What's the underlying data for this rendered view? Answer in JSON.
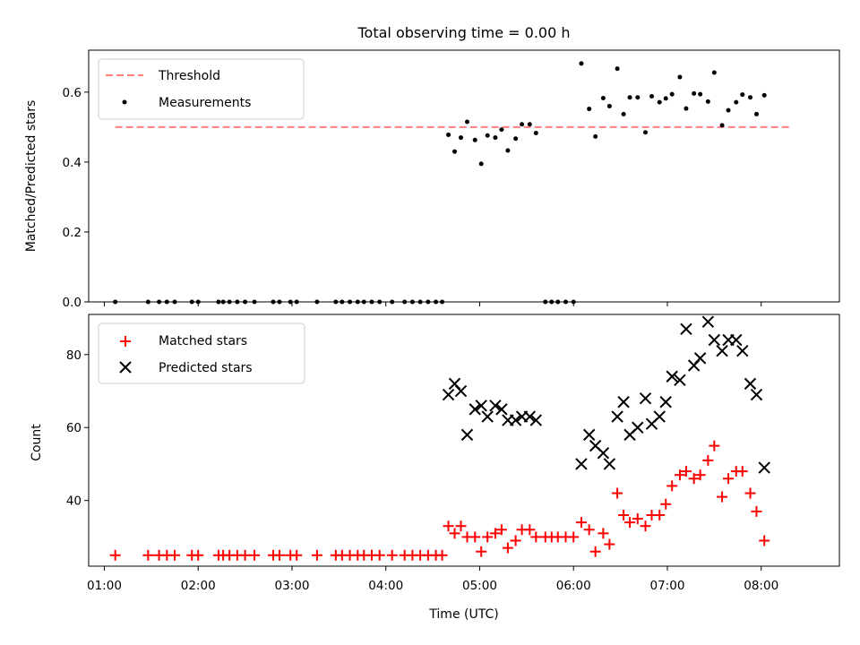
{
  "chart_data": [
    {
      "type": "scatter",
      "title": "Total observing time = 0.00 h",
      "xlabel": "",
      "ylabel": "Matched/Predicted stars",
      "ylim": [
        0,
        0.72
      ],
      "yticks": [
        0.0,
        0.2,
        0.4,
        0.6
      ],
      "ytick_labels": [
        "0.0",
        "0.2",
        "0.4",
        "0.6"
      ],
      "xlim": [
        "00:50",
        "08:50"
      ],
      "legend_position": "upper-left",
      "threshold": {
        "name": "Threshold",
        "value": 0.5,
        "x_start": "01:07",
        "x_end": "08:20",
        "color": "#ff7f7f",
        "style": "dashed"
      },
      "series": [
        {
          "name": "Measurements",
          "color": "#000000",
          "marker": "dot",
          "points": [
            [
              "01:07",
              0
            ],
            [
              "01:28",
              0
            ],
            [
              "01:35",
              0
            ],
            [
              "01:40",
              0
            ],
            [
              "01:45",
              0
            ],
            [
              "01:56",
              0
            ],
            [
              "02:00",
              0
            ],
            [
              "02:13",
              0
            ],
            [
              "02:16",
              0
            ],
            [
              "02:20",
              0
            ],
            [
              "02:25",
              0
            ],
            [
              "02:30",
              0
            ],
            [
              "02:36",
              0
            ],
            [
              "02:48",
              0
            ],
            [
              "02:52",
              0
            ],
            [
              "02:59",
              0
            ],
            [
              "03:03",
              0
            ],
            [
              "03:16",
              0
            ],
            [
              "03:28",
              0
            ],
            [
              "03:32",
              0
            ],
            [
              "03:37",
              0
            ],
            [
              "03:42",
              0
            ],
            [
              "03:46",
              0
            ],
            [
              "03:51",
              0
            ],
            [
              "03:56",
              0
            ],
            [
              "04:04",
              0
            ],
            [
              "04:12",
              0
            ],
            [
              "04:17",
              0
            ],
            [
              "04:22",
              0
            ],
            [
              "04:27",
              0
            ],
            [
              "04:32",
              0
            ],
            [
              "04:36",
              0
            ],
            [
              "04:40",
              0.478
            ],
            [
              "04:44",
              0.43
            ],
            [
              "04:48",
              0.47
            ],
            [
              "04:52",
              0.515
            ],
            [
              "04:57",
              0.463
            ],
            [
              "05:01",
              0.395
            ],
            [
              "05:05",
              0.476
            ],
            [
              "05:10",
              0.47
            ],
            [
              "05:14",
              0.493
            ],
            [
              "05:18",
              0.433
            ],
            [
              "05:23",
              0.467
            ],
            [
              "05:27",
              0.508
            ],
            [
              "05:32",
              0.508
            ],
            [
              "05:36",
              0.483
            ],
            [
              "05:42",
              0
            ],
            [
              "05:46",
              0
            ],
            [
              "05:50",
              0
            ],
            [
              "05:55",
              0
            ],
            [
              "06:00",
              0
            ],
            [
              "06:05",
              0.682
            ],
            [
              "06:10",
              0.552
            ],
            [
              "06:14",
              0.473
            ],
            [
              "06:19",
              0.583
            ],
            [
              "06:23",
              0.56
            ],
            [
              "06:28",
              0.667
            ],
            [
              "06:32",
              0.537
            ],
            [
              "06:36",
              0.585
            ],
            [
              "06:41",
              0.585
            ],
            [
              "06:46",
              0.485
            ],
            [
              "06:50",
              0.588
            ],
            [
              "06:55",
              0.571
            ],
            [
              "06:59",
              0.582
            ],
            [
              "07:03",
              0.594
            ],
            [
              "07:08",
              0.643
            ],
            [
              "07:12",
              0.553
            ],
            [
              "07:17",
              0.596
            ],
            [
              "07:21",
              0.594
            ],
            [
              "07:26",
              0.573
            ],
            [
              "07:30",
              0.656
            ],
            [
              "07:35",
              0.505
            ],
            [
              "07:39",
              0.548
            ],
            [
              "07:44",
              0.571
            ],
            [
              "07:48",
              0.593
            ],
            [
              "07:53",
              0.585
            ],
            [
              "07:57",
              0.537
            ],
            [
              "08:02",
              0.591
            ]
          ]
        }
      ]
    },
    {
      "type": "scatter",
      "title": "",
      "xlabel": "Time (UTC)",
      "ylabel": "Count",
      "ylim": [
        22,
        91
      ],
      "yticks": [
        40,
        60,
        80
      ],
      "ytick_labels": [
        "40",
        "60",
        "80"
      ],
      "xlim": [
        "00:50",
        "08:50"
      ],
      "xticks": [
        "01:00",
        "02:00",
        "03:00",
        "04:00",
        "05:00",
        "06:00",
        "07:00",
        "08:00"
      ],
      "xtick_labels": [
        "01:00",
        "02:00",
        "03:00",
        "04:00",
        "05:00",
        "06:00",
        "07:00",
        "08:00"
      ],
      "legend_position": "upper-left",
      "series": [
        {
          "name": "Matched stars",
          "color": "#ff0000",
          "marker": "plus",
          "points": [
            [
              "01:07",
              25
            ],
            [
              "01:28",
              25
            ],
            [
              "01:35",
              25
            ],
            [
              "01:40",
              25
            ],
            [
              "01:45",
              25
            ],
            [
              "01:56",
              25
            ],
            [
              "02:00",
              25
            ],
            [
              "02:13",
              25
            ],
            [
              "02:16",
              25
            ],
            [
              "02:20",
              25
            ],
            [
              "02:25",
              25
            ],
            [
              "02:30",
              25
            ],
            [
              "02:36",
              25
            ],
            [
              "02:48",
              25
            ],
            [
              "02:52",
              25
            ],
            [
              "02:59",
              25
            ],
            [
              "03:03",
              25
            ],
            [
              "03:16",
              25
            ],
            [
              "03:28",
              25
            ],
            [
              "03:32",
              25
            ],
            [
              "03:37",
              25
            ],
            [
              "03:42",
              25
            ],
            [
              "03:46",
              25
            ],
            [
              "03:51",
              25
            ],
            [
              "03:56",
              25
            ],
            [
              "04:04",
              25
            ],
            [
              "04:12",
              25
            ],
            [
              "04:17",
              25
            ],
            [
              "04:22",
              25
            ],
            [
              "04:27",
              25
            ],
            [
              "04:32",
              25
            ],
            [
              "04:36",
              25
            ],
            [
              "04:40",
              33
            ],
            [
              "04:44",
              31
            ],
            [
              "04:48",
              33
            ],
            [
              "04:52",
              30
            ],
            [
              "04:57",
              30
            ],
            [
              "05:01",
              26
            ],
            [
              "05:05",
              30
            ],
            [
              "05:10",
              31
            ],
            [
              "05:14",
              32
            ],
            [
              "05:18",
              27
            ],
            [
              "05:23",
              29
            ],
            [
              "05:27",
              32
            ],
            [
              "05:32",
              32
            ],
            [
              "05:36",
              30
            ],
            [
              "05:42",
              30
            ],
            [
              "05:46",
              30
            ],
            [
              "05:50",
              30
            ],
            [
              "05:55",
              30
            ],
            [
              "06:00",
              30
            ],
            [
              "06:05",
              34
            ],
            [
              "06:10",
              32
            ],
            [
              "06:14",
              26
            ],
            [
              "06:19",
              31
            ],
            [
              "06:23",
              28
            ],
            [
              "06:28",
              42
            ],
            [
              "06:32",
              36
            ],
            [
              "06:36",
              34
            ],
            [
              "06:41",
              35
            ],
            [
              "06:46",
              33
            ],
            [
              "06:50",
              36
            ],
            [
              "06:55",
              36
            ],
            [
              "06:59",
              39
            ],
            [
              "07:03",
              44
            ],
            [
              "07:08",
              47
            ],
            [
              "07:12",
              48
            ],
            [
              "07:17",
              46
            ],
            [
              "07:21",
              47
            ],
            [
              "07:26",
              51
            ],
            [
              "07:30",
              55
            ],
            [
              "07:35",
              41
            ],
            [
              "07:39",
              46
            ],
            [
              "07:44",
              48
            ],
            [
              "07:48",
              48
            ],
            [
              "07:53",
              42
            ],
            [
              "07:57",
              37
            ],
            [
              "08:02",
              29
            ]
          ]
        },
        {
          "name": "Predicted stars",
          "color": "#000000",
          "marker": "x",
          "points": [
            [
              "04:40",
              69
            ],
            [
              "04:44",
              72
            ],
            [
              "04:48",
              70
            ],
            [
              "04:52",
              58
            ],
            [
              "04:57",
              65
            ],
            [
              "05:01",
              66
            ],
            [
              "05:05",
              63
            ],
            [
              "05:10",
              66
            ],
            [
              "05:14",
              65
            ],
            [
              "05:18",
              62
            ],
            [
              "05:23",
              62
            ],
            [
              "05:27",
              63
            ],
            [
              "05:32",
              63
            ],
            [
              "05:36",
              62
            ],
            [
              "06:05",
              50
            ],
            [
              "06:10",
              58
            ],
            [
              "06:14",
              55
            ],
            [
              "06:19",
              53
            ],
            [
              "06:23",
              50
            ],
            [
              "06:28",
              63
            ],
            [
              "06:32",
              67
            ],
            [
              "06:36",
              58
            ],
            [
              "06:41",
              60
            ],
            [
              "06:46",
              68
            ],
            [
              "06:50",
              61
            ],
            [
              "06:55",
              63
            ],
            [
              "06:59",
              67
            ],
            [
              "07:03",
              74
            ],
            [
              "07:08",
              73
            ],
            [
              "07:12",
              87
            ],
            [
              "07:17",
              77
            ],
            [
              "07:21",
              79
            ],
            [
              "07:26",
              89
            ],
            [
              "07:30",
              84
            ],
            [
              "07:35",
              81
            ],
            [
              "07:39",
              84
            ],
            [
              "07:44",
              84
            ],
            [
              "07:48",
              81
            ],
            [
              "07:53",
              72
            ],
            [
              "07:57",
              69
            ],
            [
              "08:02",
              49
            ]
          ]
        }
      ]
    }
  ]
}
